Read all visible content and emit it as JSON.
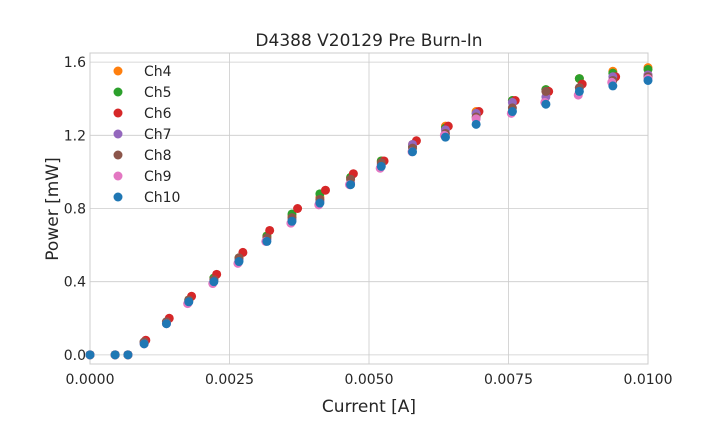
{
  "chart_data": {
    "type": "scatter",
    "title": "D4388 V20129 Pre Burn-In",
    "xlabel": "Current [A]",
    "ylabel": "Power [mW]",
    "xlim": [
      0.0,
      0.01
    ],
    "ylim": [
      -0.05,
      1.65
    ],
    "x_ticks": [
      "0.0000",
      "0.0025",
      "0.0050",
      "0.0075",
      "0.0100"
    ],
    "x_tick_values": [
      0.0,
      0.0025,
      0.005,
      0.0075,
      0.01
    ],
    "y_ticks": [
      "0.0",
      "0.4",
      "0.8",
      "1.2",
      "1.6"
    ],
    "y_tick_values": [
      0.0,
      0.4,
      0.8,
      1.2,
      1.6
    ],
    "grid": true,
    "legend_position": "upper-left",
    "series": [
      {
        "name": "Ch4",
        "color": "#ff7f0e",
        "x": [
          0.0,
          0.00045,
          0.00068,
          0.00097,
          0.00137,
          0.00177,
          0.00222,
          0.00267,
          0.00317,
          0.00362,
          0.00412,
          0.00467,
          0.00522,
          0.00578,
          0.00637,
          0.00692,
          0.00757,
          0.00817,
          0.00877,
          0.00937,
          0.01
        ],
        "y": [
          0.0,
          0.0,
          0.0,
          0.07,
          0.18,
          0.3,
          0.42,
          0.53,
          0.65,
          0.76,
          0.86,
          0.97,
          1.06,
          1.15,
          1.25,
          1.33,
          1.39,
          1.45,
          1.51,
          1.55,
          1.57
        ]
      },
      {
        "name": "Ch5",
        "color": "#2ca02c",
        "x": [
          0.0,
          0.00045,
          0.00068,
          0.00097,
          0.00137,
          0.00177,
          0.00222,
          0.00267,
          0.00317,
          0.00362,
          0.00412,
          0.00467,
          0.00522,
          0.00578,
          0.00637,
          0.00692,
          0.00757,
          0.00817,
          0.00877,
          0.00937,
          0.01
        ],
        "y": [
          0.0,
          0.0,
          0.0,
          0.07,
          0.18,
          0.3,
          0.42,
          0.53,
          0.65,
          0.77,
          0.88,
          0.97,
          1.06,
          1.14,
          1.24,
          1.32,
          1.39,
          1.45,
          1.51,
          1.54,
          1.56
        ]
      },
      {
        "name": "Ch6",
        "color": "#d62728",
        "x": [
          0.0,
          0.00045,
          0.00068,
          0.001,
          0.00142,
          0.00182,
          0.00227,
          0.00274,
          0.00322,
          0.00372,
          0.00422,
          0.00472,
          0.00527,
          0.00585,
          0.00642,
          0.00697,
          0.00762,
          0.00822,
          0.00882,
          0.00942,
          0.01
        ],
        "y": [
          0.0,
          0.0,
          0.0,
          0.08,
          0.2,
          0.32,
          0.44,
          0.56,
          0.68,
          0.8,
          0.9,
          0.99,
          1.06,
          1.17,
          1.25,
          1.33,
          1.39,
          1.44,
          1.48,
          1.52,
          1.53
        ]
      },
      {
        "name": "Ch7",
        "color": "#9467bd",
        "x": [
          0.0,
          0.00045,
          0.00068,
          0.00097,
          0.00137,
          0.00177,
          0.00222,
          0.00267,
          0.00317,
          0.00362,
          0.00412,
          0.00467,
          0.00522,
          0.00578,
          0.00637,
          0.00692,
          0.00757,
          0.00817,
          0.00877,
          0.00937,
          0.01
        ],
        "y": [
          0.0,
          0.0,
          0.0,
          0.07,
          0.18,
          0.29,
          0.41,
          0.52,
          0.63,
          0.74,
          0.84,
          0.94,
          1.04,
          1.15,
          1.23,
          1.32,
          1.38,
          1.41,
          1.46,
          1.52,
          1.53
        ]
      },
      {
        "name": "Ch8",
        "color": "#8c564b",
        "x": [
          0.0,
          0.00045,
          0.00068,
          0.00097,
          0.00137,
          0.00177,
          0.00222,
          0.00267,
          0.00317,
          0.00362,
          0.00412,
          0.00467,
          0.00522,
          0.00578,
          0.00637,
          0.00692,
          0.00757,
          0.00817,
          0.00877,
          0.00937,
          0.01
        ],
        "y": [
          0.0,
          0.0,
          0.0,
          0.07,
          0.18,
          0.3,
          0.41,
          0.53,
          0.64,
          0.75,
          0.85,
          0.96,
          1.05,
          1.13,
          1.21,
          1.3,
          1.35,
          1.44,
          1.46,
          1.5,
          1.52
        ]
      },
      {
        "name": "Ch9",
        "color": "#e377c2",
        "x": [
          0.0,
          0.00045,
          0.00068,
          0.00097,
          0.00137,
          0.00175,
          0.0022,
          0.00265,
          0.00315,
          0.0036,
          0.0041,
          0.00465,
          0.0052,
          0.00577,
          0.00635,
          0.00692,
          0.00755,
          0.00815,
          0.00875,
          0.00935,
          0.01
        ],
        "y": [
          0.0,
          0.0,
          0.0,
          0.06,
          0.17,
          0.28,
          0.39,
          0.5,
          0.62,
          0.72,
          0.82,
          0.93,
          1.02,
          1.11,
          1.2,
          1.29,
          1.32,
          1.38,
          1.42,
          1.49,
          1.51
        ]
      },
      {
        "name": "Ch10",
        "color": "#1f77b4",
        "x": [
          0.0,
          0.00045,
          0.00068,
          0.00097,
          0.00137,
          0.00177,
          0.00222,
          0.00267,
          0.00317,
          0.00362,
          0.00412,
          0.00467,
          0.00522,
          0.00578,
          0.00637,
          0.00692,
          0.00757,
          0.00817,
          0.00877,
          0.00937,
          0.01
        ],
        "y": [
          0.0,
          0.0,
          0.0,
          0.06,
          0.17,
          0.29,
          0.4,
          0.51,
          0.62,
          0.73,
          0.83,
          0.93,
          1.03,
          1.11,
          1.19,
          1.26,
          1.33,
          1.37,
          1.44,
          1.47,
          1.5
        ]
      }
    ]
  }
}
